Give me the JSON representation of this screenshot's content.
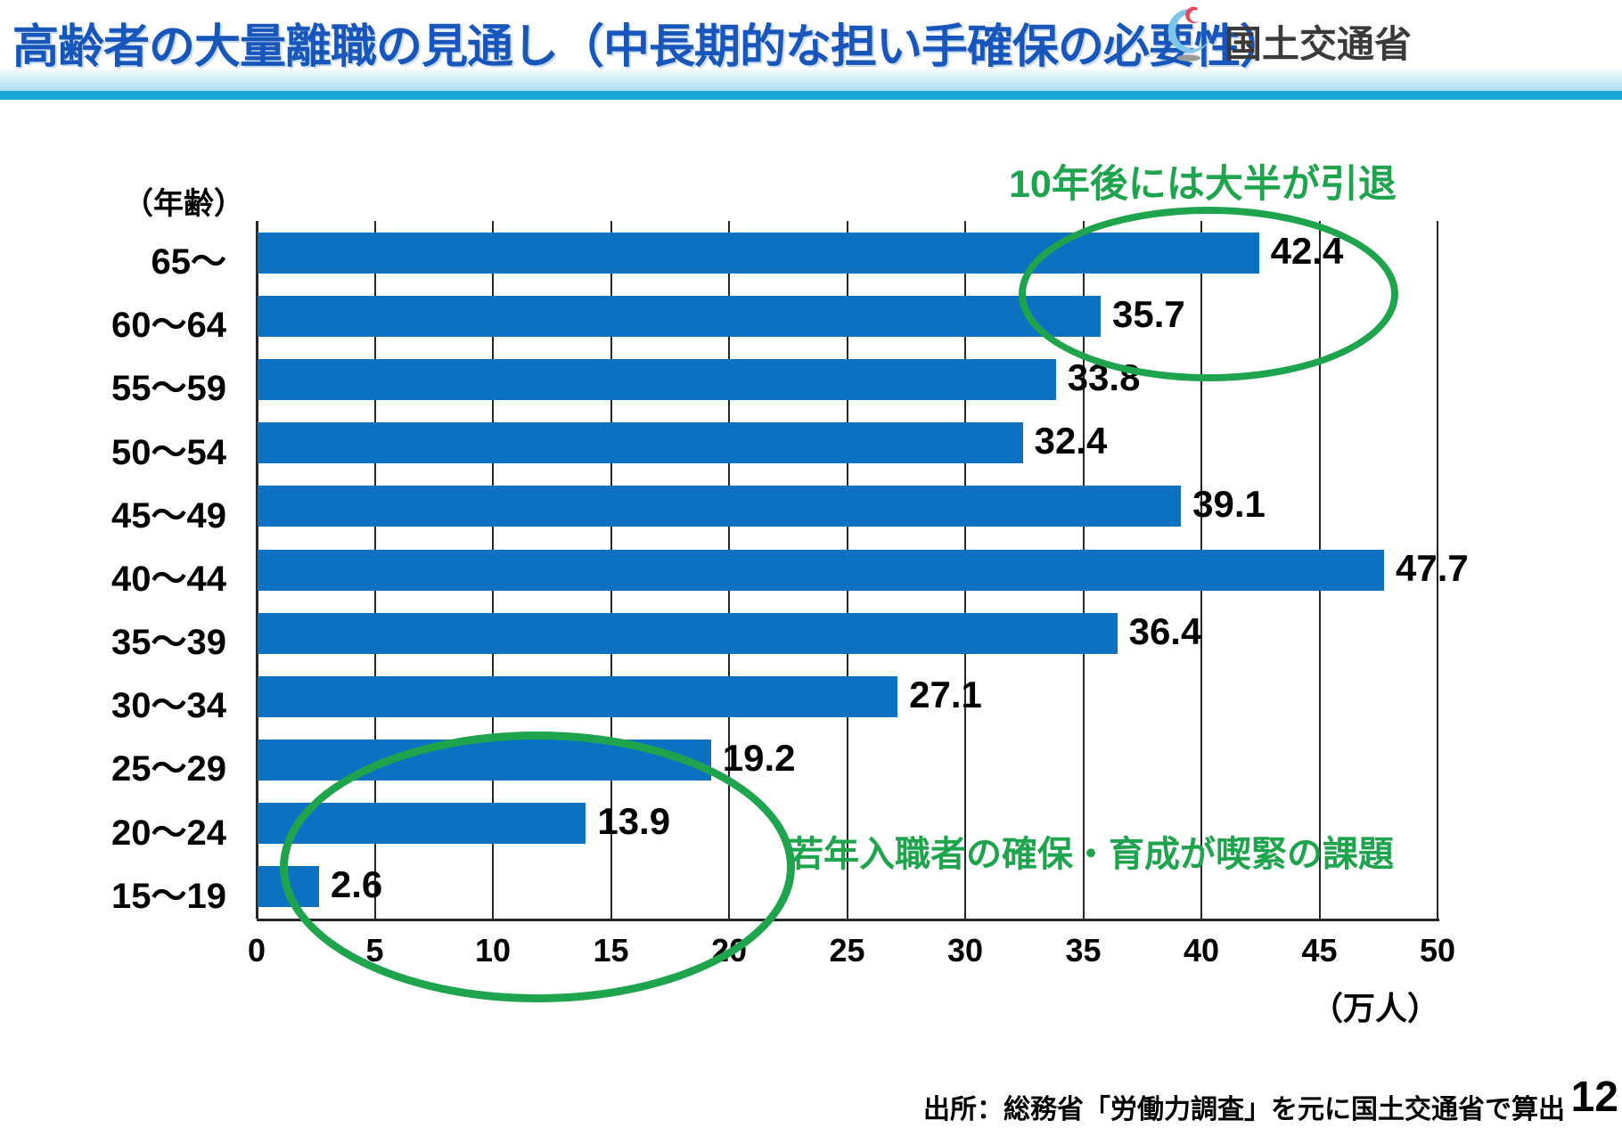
{
  "header": {
    "title": "高齢者の大量離職の見通し（中長期的な担い手確保の必要性）",
    "agency": "国土交通省"
  },
  "chart_data": {
    "type": "bar",
    "orientation": "horizontal",
    "title": "",
    "ylabel": "（年齢）",
    "xlabel_unit": "（万人）",
    "categories": [
      "65～",
      "60～64",
      "55～59",
      "50～54",
      "45～49",
      "40～44",
      "35～39",
      "30～34",
      "25～29",
      "20～24",
      "15～19"
    ],
    "values": [
      42.4,
      35.7,
      33.8,
      32.4,
      39.1,
      47.7,
      36.4,
      27.1,
      19.2,
      13.9,
      2.6
    ],
    "value_labels": [
      "42.4",
      "35.7",
      "33.8",
      "32.4",
      "39.1",
      "47.7",
      "36.4",
      "27.1",
      "19.2",
      "13.9",
      "2.6"
    ],
    "x_ticks": [
      "0",
      "5",
      "10",
      "15",
      "20",
      "25",
      "30",
      "35",
      "40",
      "45",
      "50"
    ],
    "xlim": [
      0,
      50
    ],
    "grid": true,
    "legend": "none",
    "bar_color": "#0D71C2"
  },
  "annotations": {
    "top_note": "10年後には大半が引退",
    "bottom_note": "若年入職者の確保・育成が喫緊の課題",
    "accent_color": "#1FA44E"
  },
  "footer": {
    "source": "出所：総務省「労働力調査」を元に国土交通省で算出",
    "page": "12"
  }
}
